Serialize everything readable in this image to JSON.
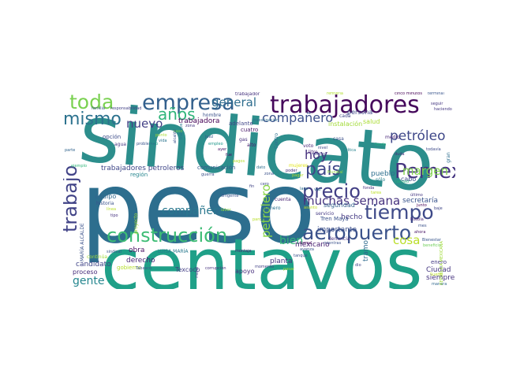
{
  "words": [
    {
      "text": "sindicato",
      "color": "#2c8e8c"
    },
    {
      "text": "peso",
      "color": "#2d6e8e"
    },
    {
      "text": "centavos",
      "color": "#1fa088"
    },
    {
      "text": "trabajadores",
      "color": "#45085b"
    },
    {
      "text": "empresa",
      "color": "#33608d"
    },
    {
      "text": "aeropuerto",
      "color": "#3b528b"
    },
    {
      "text": "construcción",
      "color": "#3dbc74"
    },
    {
      "text": "tiempo",
      "color": "#3e4a89"
    },
    {
      "text": "Pemex",
      "color": "#453580"
    },
    {
      "text": "precio",
      "color": "#423f85"
    },
    {
      "text": "país",
      "color": "#3f4788"
    },
    {
      "text": "trabajo",
      "color": "#414387"
    },
    {
      "text": "toda",
      "color": "#7ad151"
    },
    {
      "text": "mismo",
      "color": "#2c728e"
    },
    {
      "text": "años",
      "color": "#31b57b"
    },
    {
      "text": "general",
      "color": "#2e6d8e"
    },
    {
      "text": "petróleo",
      "color": "#3f4889"
    },
    {
      "text": "compañero",
      "color": "#3c508b"
    },
    {
      "text": "nuevo",
      "color": "#424086"
    },
    {
      "text": "hoy",
      "color": "#46317e"
    },
    {
      "text": "muchas semana",
      "color": "#46327e"
    },
    {
      "text": "margen",
      "color": "#81d34d"
    },
    {
      "text": "cosa",
      "color": "#bade28"
    },
    {
      "text": "compañera",
      "color": "#2a778e"
    },
    {
      "text": "bien",
      "color": "#35b779"
    },
    {
      "text": "gente",
      "color": "#24868e"
    },
    {
      "text": "petrolero",
      "color": "#8bd646"
    },
    {
      "text": "trabajadora",
      "color": "#440154"
    },
    {
      "text": "trabajadores petroleros",
      "color": "#3f4788"
    },
    {
      "text": "comunicación",
      "color": "#38598c"
    },
    {
      "text": "región",
      "color": "#25858e"
    },
    {
      "text": "equipo",
      "color": "#31688e"
    },
    {
      "text": "historia",
      "color": "#3b528b"
    },
    {
      "text": "obra",
      "color": "#470d60"
    },
    {
      "text": "derecho",
      "color": "#482475"
    },
    {
      "text": "candidato",
      "color": "#404588"
    },
    {
      "text": "proceso",
      "color": "#472d7b"
    },
    {
      "text": "gobierno",
      "color": "#b5de2b"
    },
    {
      "text": "Texcoco",
      "color": "#433e85"
    },
    {
      "text": "apoyo",
      "color": "#472f7d"
    },
    {
      "text": "planta",
      "color": "#46337f"
    },
    {
      "text": "mexicano",
      "color": "#482071"
    },
    {
      "text": "hecho",
      "color": "#443983"
    },
    {
      "text": "importante",
      "color": "#3c4f8a"
    },
    {
      "text": "seguridad",
      "color": "#34618d"
    },
    {
      "text": "secretaría",
      "color": "#3a548c"
    },
    {
      "text": "Ciudad",
      "color": "#453781"
    },
    {
      "text": "siempre",
      "color": "#46337f"
    },
    {
      "text": "pueblo",
      "color": "#2e6f8e"
    },
    {
      "text": "cabo",
      "color": "#3e4a89"
    },
    {
      "text": "persona",
      "color": "#3f4889"
    },
    {
      "text": "salud",
      "color": "#aadc32"
    },
    {
      "text": "instalación",
      "color": "#a2da37"
    },
    {
      "text": "adelante",
      "color": "#404688"
    },
    {
      "text": "cuatro",
      "color": "#48186a"
    },
    {
      "text": "hombre",
      "color": "#3b528b"
    },
    {
      "text": "opción",
      "color": "#3d4d8a"
    },
    {
      "text": "agua",
      "color": "#453882"
    },
    {
      "text": "problema",
      "color": "#39568c"
    },
    {
      "text": "gas",
      "color": "#46307e"
    },
    {
      "text": "alto",
      "color": "#481b6d"
    },
    {
      "text": "casa",
      "color": "#3c508b"
    },
    {
      "text": "voto",
      "color": "#482878"
    },
    {
      "text": "litro",
      "color": "#482677"
    },
    {
      "text": "Tren Maya",
      "color": "#3b518b"
    },
    {
      "text": "cuenta",
      "color": "#482475"
    },
    {
      "text": "primero",
      "color": "#2d708e"
    },
    {
      "text": "tramo",
      "color": "#2f6b8e"
    },
    {
      "text": "mujeres",
      "color": "#e1e418"
    },
    {
      "text": "ejemplo",
      "color": "#33b67a"
    },
    {
      "text": "continúa",
      "color": "#a0da39"
    },
    {
      "text": "último",
      "color": "#453781"
    },
    {
      "text": "enero",
      "color": "#443a83"
    },
    {
      "text": "manera",
      "color": "#31688e"
    },
    {
      "text": "Bienestar",
      "color": "#39568c"
    },
    {
      "text": "medio",
      "color": "#482677"
    },
    {
      "text": "Tabasco",
      "color": "#3b528b"
    },
    {
      "text": "parte",
      "color": "#32658e"
    },
    {
      "text": "cinco minutos",
      "color": "#440154"
    },
    {
      "text": "terminal",
      "color": "#39558c"
    },
    {
      "text": "seguir",
      "color": "#453781"
    },
    {
      "text": "familia",
      "color": "#3b528b"
    },
    {
      "text": "responsabilidad",
      "color": "#424186"
    },
    {
      "text": "trabajador",
      "color": "#46337f"
    },
    {
      "text": "refinería",
      "color": "#b0dd2f"
    },
    {
      "text": "cada",
      "color": "#404588"
    },
    {
      "text": "Centro",
      "color": "#2d708e"
    },
    {
      "text": "sólo",
      "color": "#27808e"
    },
    {
      "text": "empleo",
      "color": "#1f988b"
    },
    {
      "text": "servicio",
      "color": "#443983"
    },
    {
      "text": "denuncia",
      "color": "#46307e"
    },
    {
      "text": "Crítica",
      "color": "#26828e"
    },
    {
      "text": "todavía",
      "color": "#3e4a89"
    },
    {
      "text": "vida",
      "color": "#2b748e"
    },
    {
      "text": "zona",
      "color": "#453882"
    },
    {
      "text": "junto",
      "color": "#440154"
    },
    {
      "text": "baje",
      "color": "#404688"
    },
    {
      "text": "gran",
      "color": "#2e6e8e"
    },
    {
      "text": "MARÍA ALCALDE",
      "color": "#3b528b"
    },
    {
      "text": "LUISA MARÍA",
      "color": "#29798e"
    },
    {
      "text": "proyecto",
      "color": "#a5db36"
    },
    {
      "text": "corrupción",
      "color": "#46327e"
    },
    {
      "text": "montaje",
      "color": "#482173"
    },
    {
      "text": "momento",
      "color": "#424186"
    },
    {
      "text": "control",
      "color": "#3f4788"
    },
    {
      "text": "nivel",
      "color": "#3e4989"
    },
    {
      "text": "tanque",
      "color": "#3b528b"
    },
    {
      "text": "pasar",
      "color": "#a8db34"
    },
    {
      "text": "haciendo",
      "color": "#453882"
    },
    {
      "text": "sindical",
      "color": "#39568c"
    },
    {
      "text": "REPÚBLICA MEXICANA",
      "color": "#a0da39"
    },
    {
      "text": "beneficio",
      "color": "#6ece58"
    },
    {
      "text": "Sueño",
      "color": "#bddf26"
    },
    {
      "text": "lago",
      "color": "#2d708e"
    },
    {
      "text": "poder",
      "color": "#472c7a"
    },
    {
      "text": "forma",
      "color": "#440154"
    },
    {
      "text": "avanza",
      "color": "#3a548c"
    },
    {
      "text": "alcalde",
      "color": "#3b528b"
    },
    {
      "text": "investigación",
      "color": "#2f6c8e"
    },
    {
      "text": "tipo",
      "color": "#46337f"
    },
    {
      "text": "línea",
      "color": "#b8de29"
    },
    {
      "text": "calidad",
      "color": "#29af7f"
    },
    {
      "text": "duda",
      "color": "#472c7a"
    },
    {
      "text": "ciclo",
      "color": "#1f9f88"
    },
    {
      "text": "punto",
      "color": "#a8db34"
    },
    {
      "text": "trabajos",
      "color": "#2a768e"
    },
    {
      "text": "mientras",
      "color": "#3b528b"
    },
    {
      "text": "dio",
      "color": "#404588"
    },
    {
      "text": "dirigente",
      "color": "#3a548c"
    },
    {
      "text": "juez",
      "color": "#38588c"
    },
    {
      "text": "ayer",
      "color": "#471365"
    },
    {
      "text": "fue",
      "color": "#470e61"
    },
    {
      "text": "pagos",
      "color": "#b5de2b"
    },
    {
      "text": "dato",
      "color": "#2e6e8e"
    },
    {
      "text": "zona",
      "color": "#3b528b"
    },
    {
      "text": "asunto",
      "color": "#c2df23"
    },
    {
      "text": "fin",
      "color": "#414487"
    },
    {
      "text": "pagar",
      "color": "#b2dd2d"
    },
    {
      "text": "fonda",
      "color": "#46327e"
    },
    {
      "text": "tarea",
      "color": "#bddf26"
    },
    {
      "text": "moral",
      "color": "#443983"
    },
    {
      "text": "caso",
      "color": "#7ad151"
    },
    {
      "text": "guerra",
      "color": "#3b528b"
    },
    {
      "text": "labor",
      "color": "#90d743"
    },
    {
      "text": "paro",
      "color": "#b8de29"
    },
    {
      "text": "fondo",
      "color": "#29af7f"
    },
    {
      "text": "cero",
      "color": "#3e4a89"
    },
    {
      "text": "vez",
      "color": "#2d708e"
    },
    {
      "text": "Mundial",
      "color": "#95d840"
    },
    {
      "text": "Puebla",
      "color": "#482677"
    },
    {
      "text": "mes",
      "color": "#3b528b"
    },
    {
      "text": "ahora",
      "color": "#471365"
    }
  ]
}
